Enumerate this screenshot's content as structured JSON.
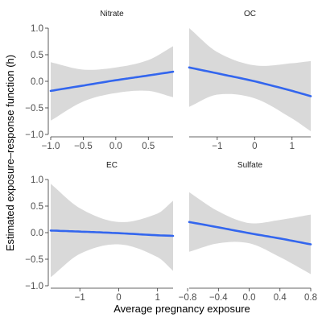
{
  "chart_data": {
    "type": "line",
    "xlabel": "Average pregnancy exposure",
    "ylabel": "Estimated exposure–response function  (h)",
    "ylim": [
      -1.0,
      1.0
    ],
    "y_ticks": [
      "1.0",
      "0.5",
      "0.0",
      "-0.5",
      "-1.0"
    ],
    "grid": false,
    "colors": {
      "line": "#3366ee",
      "ribbon": "#d9d9d9",
      "axis": "#333333"
    },
    "panels": [
      {
        "title": "Nitrate",
        "x_range": [
          -1.0,
          0.88
        ],
        "x_ticks": [
          "-1.0",
          "-0.5",
          "0.0",
          "0.5"
        ],
        "x_tick_values": [
          -1.0,
          -0.5,
          0.0,
          0.5
        ],
        "x": [
          -1.0,
          -0.5,
          0.0,
          0.5,
          0.88
        ],
        "estimate": [
          -0.18,
          -0.08,
          0.02,
          0.11,
          0.18
        ],
        "lower": [
          -0.74,
          -0.38,
          -0.22,
          -0.18,
          -0.3
        ],
        "upper": [
          0.36,
          0.22,
          0.26,
          0.4,
          0.66
        ]
      },
      {
        "title": "OC",
        "x_range": [
          -1.75,
          1.5
        ],
        "x_ticks": [
          "-1",
          "0",
          "1"
        ],
        "x_tick_values": [
          -1,
          0,
          1
        ],
        "x": [
          -1.75,
          -1.0,
          0.0,
          1.0,
          1.5
        ],
        "estimate": [
          0.26,
          0.15,
          0.0,
          -0.18,
          -0.28
        ],
        "lower": [
          -0.48,
          -0.25,
          -0.32,
          -0.7,
          -0.94
        ],
        "upper": [
          1.0,
          0.55,
          0.3,
          0.34,
          0.38
        ]
      },
      {
        "title": "EC",
        "x_range": [
          -1.75,
          1.4
        ],
        "x_ticks": [
          "-1",
          "0",
          "1"
        ],
        "x_tick_values": [
          -1,
          0,
          1
        ],
        "x": [
          -1.75,
          -1.0,
          0.0,
          1.0,
          1.4
        ],
        "estimate": [
          0.04,
          0.02,
          -0.01,
          -0.05,
          -0.06
        ],
        "lower": [
          -0.84,
          -0.4,
          -0.22,
          -0.46,
          -0.72
        ],
        "upper": [
          0.92,
          0.46,
          0.2,
          0.36,
          0.6
        ]
      },
      {
        "title": "Sulfate",
        "x_range": [
          -0.78,
          0.8
        ],
        "x_ticks": [
          "-0.8",
          "-0.4",
          "0.0",
          "0.4",
          "0.8"
        ],
        "x_tick_values": [
          -0.8,
          -0.4,
          0.0,
          0.4,
          0.8
        ],
        "x": [
          -0.78,
          -0.4,
          0.0,
          0.4,
          0.8
        ],
        "estimate": [
          0.2,
          0.1,
          -0.01,
          -0.11,
          -0.22
        ],
        "lower": [
          -0.36,
          -0.2,
          -0.2,
          -0.46,
          -0.78
        ],
        "upper": [
          0.76,
          0.4,
          0.18,
          0.24,
          0.34
        ]
      }
    ]
  }
}
